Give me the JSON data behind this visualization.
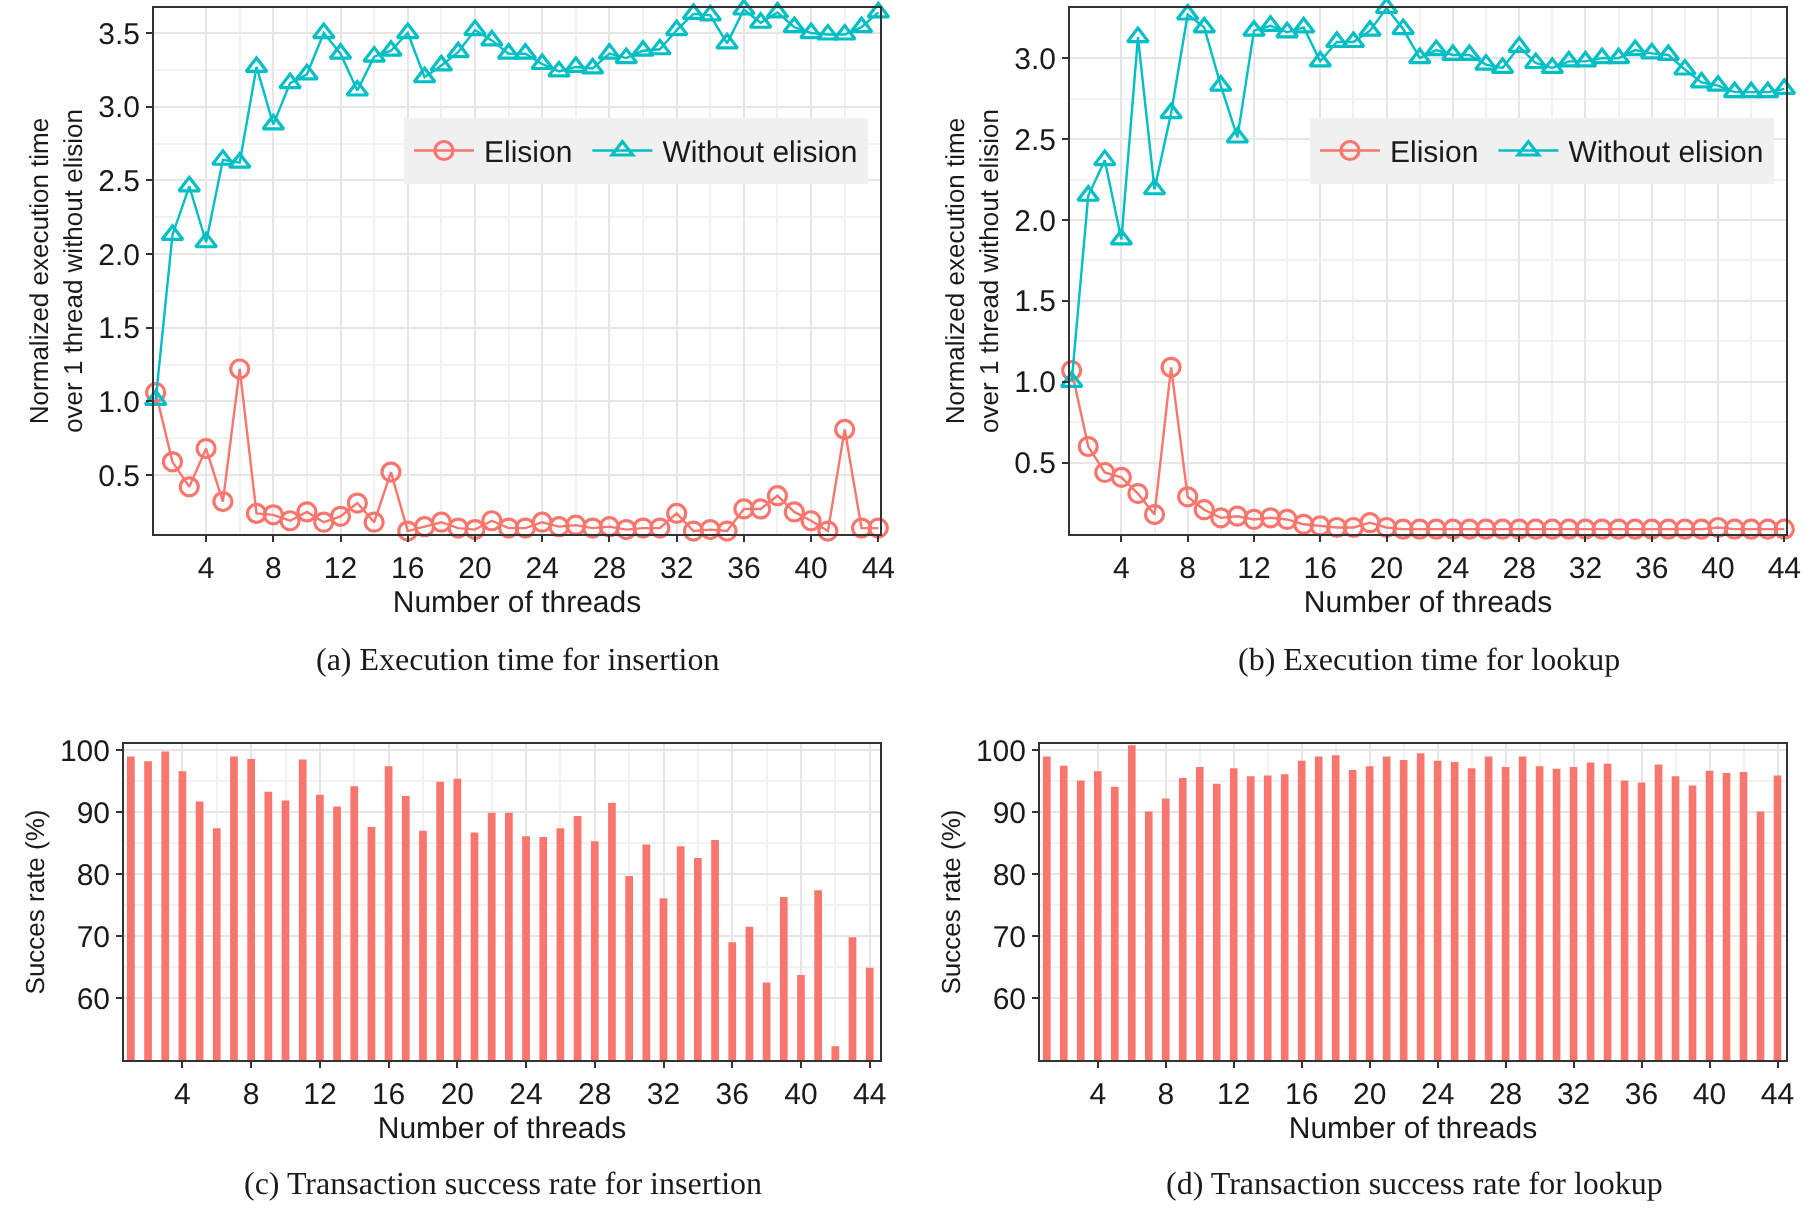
{
  "chart_data": [
    {
      "type": "line",
      "title": "(a) Execution time for insertion",
      "xlabel": "Number of threads",
      "ylabel": "Normalized execution time\nover 1 thread without elision",
      "x": [
        1,
        2,
        3,
        4,
        5,
        6,
        7,
        8,
        9,
        10,
        11,
        12,
        13,
        14,
        15,
        16,
        17,
        18,
        19,
        20,
        21,
        22,
        23,
        24,
        25,
        26,
        27,
        28,
        29,
        30,
        31,
        32,
        33,
        34,
        35,
        36,
        37,
        38,
        39,
        40,
        41,
        42,
        43,
        44
      ],
      "series": [
        {
          "name": "Elision",
          "color": "#f8766d",
          "marker": "circle",
          "values": [
            1.06,
            0.59,
            0.42,
            0.68,
            0.32,
            1.22,
            0.24,
            0.23,
            0.19,
            0.25,
            0.18,
            0.22,
            0.31,
            0.18,
            0.52,
            0.12,
            0.15,
            0.18,
            0.14,
            0.13,
            0.19,
            0.14,
            0.14,
            0.18,
            0.15,
            0.16,
            0.14,
            0.15,
            0.13,
            0.14,
            0.14,
            0.24,
            0.12,
            0.13,
            0.12,
            0.27,
            0.27,
            0.36,
            0.25,
            0.19,
            0.12,
            0.81,
            0.14,
            0.14
          ]
        },
        {
          "name": "Without elision",
          "color": "#00bfc4",
          "marker": "triangle",
          "values": [
            1.01,
            2.13,
            2.46,
            2.08,
            2.64,
            2.62,
            3.27,
            2.88,
            3.16,
            3.22,
            3.5,
            3.36,
            3.11,
            3.34,
            3.38,
            3.5,
            3.2,
            3.28,
            3.37,
            3.52,
            3.45,
            3.36,
            3.36,
            3.29,
            3.24,
            3.27,
            3.26,
            3.36,
            3.33,
            3.38,
            3.39,
            3.52,
            3.63,
            3.62,
            3.43,
            3.66,
            3.57,
            3.64,
            3.54,
            3.5,
            3.49,
            3.49,
            3.54,
            3.64
          ]
        }
      ],
      "xlim": [
        0.9,
        44.1
      ],
      "xticks": [
        4,
        8,
        12,
        16,
        20,
        24,
        28,
        32,
        36,
        40,
        44
      ],
      "ylim": [
        0.1,
        3.67
      ],
      "yticks": [
        0.5,
        {
          "value": 1,
          "label": "1.0"
        },
        1.5,
        {
          "value": 2,
          "label": "2.0"
        },
        2.5,
        {
          "value": 3,
          "label": "3.0"
        },
        3.5
      ],
      "grid": true,
      "legend": "top right",
      "line_style": "solid"
    },
    {
      "type": "line",
      "title": "(b) Execution time for lookup",
      "xlabel": "Number of threads",
      "ylabel": "Normalized execution time\nover 1 thread without elision",
      "x": [
        1,
        2,
        3,
        4,
        5,
        6,
        7,
        8,
        9,
        10,
        11,
        12,
        13,
        14,
        15,
        16,
        17,
        18,
        19,
        20,
        21,
        22,
        23,
        24,
        25,
        26,
        27,
        28,
        29,
        30,
        31,
        32,
        33,
        34,
        35,
        36,
        37,
        38,
        39,
        40,
        41,
        42,
        43,
        44
      ],
      "series": [
        {
          "name": "Elision",
          "color": "#f8766d",
          "marker": "circle",
          "values": [
            1.07,
            0.6,
            0.44,
            0.41,
            0.31,
            0.18,
            1.09,
            0.29,
            0.21,
            0.16,
            0.17,
            0.15,
            0.16,
            0.15,
            0.12,
            0.11,
            0.1,
            0.1,
            0.13,
            0.1,
            0.09,
            0.09,
            0.09,
            0.09,
            0.09,
            0.09,
            0.09,
            0.09,
            0.09,
            0.09,
            0.09,
            0.09,
            0.09,
            0.09,
            0.09,
            0.09,
            0.09,
            0.09,
            0.09,
            0.1,
            0.09,
            0.09,
            0.09,
            0.09
          ]
        },
        {
          "name": "Without elision",
          "color": "#00bfc4",
          "marker": "triangle",
          "values": [
            1.0,
            2.15,
            2.37,
            1.88,
            3.13,
            2.19,
            2.66,
            3.27,
            3.19,
            2.83,
            2.51,
            3.17,
            3.2,
            3.16,
            3.19,
            2.98,
            3.1,
            3.1,
            3.17,
            3.31,
            3.18,
            3.0,
            3.05,
            3.02,
            3.02,
            2.96,
            2.94,
            3.07,
            2.97,
            2.94,
            2.98,
            2.98,
            3.0,
            3.0,
            3.05,
            3.03,
            3.02,
            2.93,
            2.85,
            2.83,
            2.79,
            2.79,
            2.79,
            2.81
          ]
        }
      ],
      "xlim": [
        0.9,
        44.1
      ],
      "xticks": [
        4,
        8,
        12,
        16,
        20,
        24,
        28,
        32,
        36,
        40,
        44
      ],
      "ylim": [
        0.06,
        3.31
      ],
      "yticks": [
        0.5,
        {
          "value": 1,
          "label": "1.0"
        },
        1.5,
        {
          "value": 2,
          "label": "2.0"
        },
        2.5,
        {
          "value": 3,
          "label": "3.0"
        }
      ],
      "grid": true,
      "legend": "top right",
      "line_style": "solid"
    },
    {
      "type": "bar",
      "title": "(c) Transaction success rate for insertion",
      "xlabel": "Number of threads",
      "ylabel": "Succes rate (%)",
      "x": [
        1,
        2,
        3,
        4,
        5,
        6,
        7,
        8,
        9,
        10,
        11,
        12,
        13,
        14,
        15,
        16,
        17,
        18,
        19,
        20,
        21,
        22,
        23,
        24,
        25,
        26,
        27,
        28,
        29,
        30,
        31,
        32,
        33,
        34,
        35,
        36,
        37,
        38,
        39,
        40,
        41,
        42,
        43,
        44
      ],
      "color": "#f8766d",
      "values": [
        99.0,
        98.2,
        99.8,
        96.6,
        91.7,
        87.4,
        99.0,
        98.6,
        93.3,
        91.9,
        98.5,
        92.8,
        90.9,
        94.2,
        87.6,
        97.4,
        92.6,
        87.0,
        94.9,
        95.4,
        86.7,
        89.9,
        89.9,
        86.1,
        86.0,
        87.4,
        89.4,
        85.3,
        91.5,
        79.7,
        84.8,
        76.1,
        84.5,
        82.6,
        85.5,
        69.0,
        71.5,
        62.5,
        76.3,
        63.7,
        77.4,
        52.2,
        69.8,
        64.9
      ],
      "xlim": [
        0.6,
        44.6
      ],
      "xticks": [
        4,
        8,
        12,
        16,
        20,
        24,
        28,
        32,
        36,
        40,
        44
      ],
      "ylim": [
        50,
        101
      ],
      "yticks": [
        60,
        70,
        80,
        90,
        100
      ],
      "grid": true
    },
    {
      "type": "bar",
      "title": "(d) Transaction success rate for lookup",
      "xlabel": "Number of threads",
      "ylabel": "Succes rate (%)",
      "x": [
        1,
        2,
        3,
        4,
        5,
        6,
        7,
        8,
        9,
        10,
        11,
        12,
        13,
        14,
        15,
        16,
        17,
        18,
        19,
        20,
        21,
        22,
        23,
        24,
        25,
        26,
        27,
        28,
        29,
        30,
        31,
        32,
        33,
        34,
        35,
        36,
        37,
        38,
        39,
        40,
        41,
        42,
        43,
        44
      ],
      "color": "#f8766d",
      "values": [
        99.0,
        97.5,
        95.1,
        96.6,
        94.1,
        100.8,
        90.1,
        92.2,
        95.5,
        97.3,
        94.6,
        97.1,
        95.8,
        95.9,
        96.1,
        98.3,
        99.0,
        99.2,
        96.8,
        97.4,
        99.0,
        98.4,
        99.5,
        98.3,
        98.1,
        97.1,
        99.0,
        97.3,
        99.0,
        97.4,
        97.0,
        97.3,
        98.0,
        97.8,
        95.1,
        94.8,
        97.7,
        95.8,
        94.3,
        96.7,
        96.3,
        96.5,
        90.1,
        95.9
      ],
      "xlim": [
        0.6,
        44.5
      ],
      "xticks": [
        4,
        8,
        12,
        16,
        20,
        24,
        28,
        32,
        36,
        40,
        44
      ],
      "ylim": [
        50,
        101
      ],
      "yticks": [
        60,
        70,
        80,
        90,
        100
      ],
      "grid": true
    }
  ]
}
